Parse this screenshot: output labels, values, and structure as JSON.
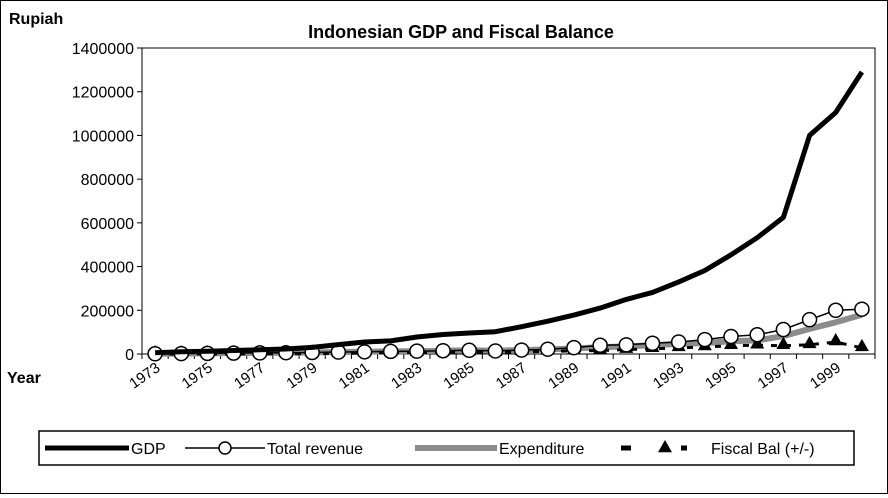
{
  "chart_data": {
    "type": "line",
    "title": "Indonesian GDP and Fiscal Balance",
    "ylabel": "Rupiah",
    "xlabel": "Year",
    "ylim": [
      0,
      1400000
    ],
    "yticks": [
      0,
      200000,
      400000,
      600000,
      800000,
      1000000,
      1200000,
      1400000
    ],
    "ytick_labels": [
      "0",
      "200000",
      "400000",
      "600000",
      "800000",
      "1000000",
      "1200000",
      "1400000"
    ],
    "x": [
      1973,
      1974,
      1975,
      1976,
      1977,
      1978,
      1979,
      1980,
      1981,
      1982,
      1983,
      1984,
      1985,
      1986,
      1987,
      1988,
      1989,
      1990,
      1991,
      1992,
      1993,
      1994,
      1995,
      1996,
      1997,
      1998,
      1999,
      2000
    ],
    "xtick_labels": [
      "1973",
      "1975",
      "1977",
      "1979",
      "1981",
      "1983",
      "1985",
      "1987",
      "1989",
      "1991",
      "1993",
      "1995",
      "1997",
      "1999"
    ],
    "grid": false,
    "legend": "bottom",
    "series": [
      {
        "name": "GDP",
        "color": "#000000",
        "style": "thick-line",
        "values": [
          6000,
          10000,
          13000,
          16000,
          19000,
          23000,
          30000,
          43000,
          55000,
          60000,
          78000,
          89000,
          96000,
          102000,
          125000,
          150000,
          178000,
          210000,
          250000,
          282000,
          330000,
          382000,
          454000,
          532000,
          625000,
          1000000,
          1105000,
          1290000
        ]
      },
      {
        "name": "Total revenue",
        "color": "#000000",
        "style": "line-open-circle",
        "values": [
          1000,
          2000,
          3000,
          4000,
          5000,
          6000,
          7000,
          9000,
          10000,
          12000,
          13000,
          15000,
          17000,
          14000,
          18000,
          22000,
          29000,
          40000,
          42000,
          49000,
          55000,
          66000,
          80000,
          88000,
          112000,
          157000,
          200000,
          205000
        ]
      },
      {
        "name": "Expenditure",
        "color": "#8c8c8c",
        "style": "thick-gray-line",
        "values": [
          1000,
          2000,
          3000,
          4000,
          5000,
          6000,
          7000,
          9000,
          10000,
          12000,
          13000,
          15000,
          17000,
          15000,
          18000,
          21000,
          25000,
          31000,
          35000,
          40000,
          46000,
          50000,
          58000,
          62000,
          82000,
          115000,
          145000,
          180000
        ]
      },
      {
        "name": "Fiscal Bal (+/-)",
        "color": "#000000",
        "style": "dashed-triangle",
        "values": [
          0,
          0,
          0,
          0,
          1000,
          1000,
          2000,
          3000,
          4000,
          5000,
          6000,
          8000,
          9000,
          6000,
          10000,
          12000,
          14000,
          16000,
          20000,
          24000,
          28000,
          32000,
          38000,
          40000,
          38000,
          42000,
          55000,
          28000
        ]
      }
    ]
  }
}
